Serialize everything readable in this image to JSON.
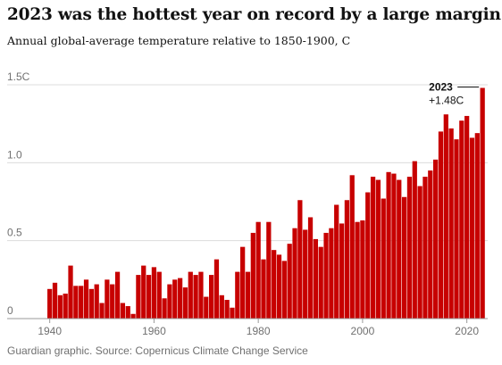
{
  "title": "2023 was the hottest year on record by a large margin",
  "subtitle": "Annual global-average temperature relative to 1850-1900, C",
  "footer": "Guardian graphic. Source: Copernicus Climate Change Service",
  "colors": {
    "bar": "#c70000",
    "grid": "#dcdcdc",
    "text": "#121212",
    "muted": "#707070"
  },
  "chart_data": {
    "type": "bar",
    "title": "2023 was the hottest year on record by a large margin",
    "subtitle": "Annual global-average temperature relative to 1850-1900, C",
    "xlabel": "",
    "ylabel": "",
    "x_ticks": [
      1940,
      1960,
      1980,
      2000,
      2020
    ],
    "y_ticks": [
      {
        "value": 0,
        "label": "0"
      },
      {
        "value": 0.5,
        "label": "0.5"
      },
      {
        "value": 1.0,
        "label": "1.0"
      },
      {
        "value": 1.5,
        "label": "1.5C"
      }
    ],
    "ylim": [
      0,
      1.5
    ],
    "xlim": [
      1938,
      2024
    ],
    "grid": true,
    "categories": [
      1940,
      1941,
      1942,
      1943,
      1944,
      1945,
      1946,
      1947,
      1948,
      1949,
      1950,
      1951,
      1952,
      1953,
      1954,
      1955,
      1956,
      1957,
      1958,
      1959,
      1960,
      1961,
      1962,
      1963,
      1964,
      1965,
      1966,
      1967,
      1968,
      1969,
      1970,
      1971,
      1972,
      1973,
      1974,
      1975,
      1976,
      1977,
      1978,
      1979,
      1980,
      1981,
      1982,
      1983,
      1984,
      1985,
      1986,
      1987,
      1988,
      1989,
      1990,
      1991,
      1992,
      1993,
      1994,
      1995,
      1996,
      1997,
      1998,
      1999,
      2000,
      2001,
      2002,
      2003,
      2004,
      2005,
      2006,
      2007,
      2008,
      2009,
      2010,
      2011,
      2012,
      2013,
      2014,
      2015,
      2016,
      2017,
      2018,
      2019,
      2020,
      2021,
      2022,
      2023
    ],
    "values": [
      0.19,
      0.23,
      0.15,
      0.16,
      0.34,
      0.21,
      0.21,
      0.25,
      0.19,
      0.22,
      0.1,
      0.25,
      0.22,
      0.3,
      0.1,
      0.08,
      0.03,
      0.28,
      0.34,
      0.28,
      0.33,
      0.3,
      0.13,
      0.22,
      0.25,
      0.26,
      0.2,
      0.3,
      0.28,
      0.3,
      0.14,
      0.28,
      0.38,
      0.15,
      0.12,
      0.07,
      0.3,
      0.46,
      0.3,
      0.55,
      0.62,
      0.38,
      0.62,
      0.44,
      0.41,
      0.37,
      0.48,
      0.58,
      0.76,
      0.57,
      0.65,
      0.51,
      0.46,
      0.55,
      0.58,
      0.73,
      0.61,
      0.76,
      0.92,
      0.62,
      0.63,
      0.81,
      0.91,
      0.89,
      0.77,
      0.94,
      0.93,
      0.89,
      0.78,
      0.91,
      1.01,
      0.85,
      0.91,
      0.95,
      1.02,
      1.2,
      1.31,
      1.22,
      1.15,
      1.27,
      1.3,
      1.16,
      1.19,
      1.48
    ],
    "annotations": [
      {
        "year": 2023,
        "year_label": "2023",
        "value_label": "+1.48C"
      }
    ]
  }
}
